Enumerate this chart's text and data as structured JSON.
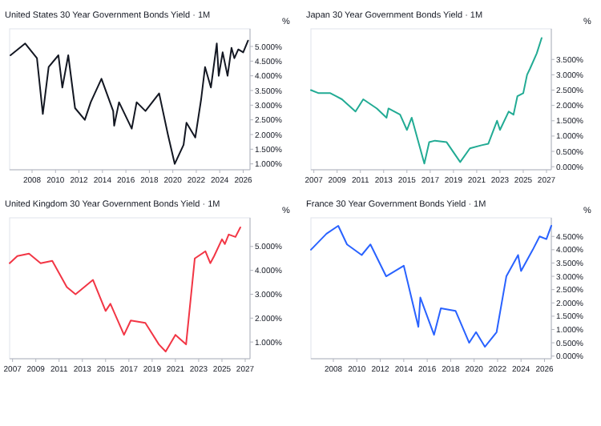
{
  "chart_data": [
    {
      "type": "line",
      "title": "United States 30 Year Government Bonds Yield · 1M",
      "ylabel": "%",
      "color": "#131722",
      "x": [
        "2006-03",
        "2007-06",
        "2008-06",
        "2008-12",
        "2009-06",
        "2010-04",
        "2010-08",
        "2011-02",
        "2011-09",
        "2012-07",
        "2013-01",
        "2013-12",
        "2014-12",
        "2015-01",
        "2015-06",
        "2016-07",
        "2016-12",
        "2017-09",
        "2018-11",
        "2019-08",
        "2020-03",
        "2020-12",
        "2021-03",
        "2021-12",
        "2022-06",
        "2022-10",
        "2023-04",
        "2023-10",
        "2023-12",
        "2024-04",
        "2024-09",
        "2025-01",
        "2025-04",
        "2025-08",
        "2026-01",
        "2026-06"
      ],
      "values": [
        4.7,
        5.1,
        4.6,
        2.7,
        4.3,
        4.7,
        3.6,
        4.7,
        2.9,
        2.5,
        3.1,
        3.9,
        2.8,
        2.3,
        3.1,
        2.2,
        3.1,
        2.8,
        3.4,
        2.0,
        1.0,
        1.65,
        2.4,
        1.9,
        3.2,
        4.3,
        3.6,
        5.1,
        4.0,
        4.8,
        4.0,
        4.95,
        4.6,
        4.9,
        4.8,
        5.2
      ],
      "xlim": [
        "2006-02",
        "2026-08"
      ],
      "xticks": [
        "2008",
        "2010",
        "2012",
        "2014",
        "2016",
        "2018",
        "2020",
        "2022",
        "2024",
        "2026"
      ],
      "ylim": [
        0.8,
        5.6
      ],
      "yticks": [
        {
          "value": 1,
          "label": "1.000%"
        },
        {
          "value": 1.5,
          "label": "1.500%"
        },
        {
          "value": 2,
          "label": "2.000%"
        },
        {
          "value": 2.5,
          "label": "2.500%"
        },
        {
          "value": 3,
          "label": "3.000%"
        },
        {
          "value": 3.5,
          "label": "3.500%"
        },
        {
          "value": 4,
          "label": "4.000%"
        },
        {
          "value": 4.5,
          "label": "4.500%"
        },
        {
          "value": 5,
          "label": "5.000%"
        }
      ]
    },
    {
      "type": "line",
      "title": "Japan 30 Year Government Bonds Yield · 1M",
      "ylabel": "%",
      "color": "#22ab94",
      "x": [
        "2006-10",
        "2007-06",
        "2008-06",
        "2008-12",
        "2009-06",
        "2010-08",
        "2011-04",
        "2012-06",
        "2013-04",
        "2013-06",
        "2014-06",
        "2015-01",
        "2015-06",
        "2016-07",
        "2016-12",
        "2017-06",
        "2018-06",
        "2019-08",
        "2020-06",
        "2021-06",
        "2022-01",
        "2022-10",
        "2023-01",
        "2023-10",
        "2024-03",
        "2024-07",
        "2025-01",
        "2025-05",
        "2025-08",
        "2026-03",
        "2026-08"
      ],
      "values": [
        2.5,
        2.4,
        2.4,
        2.3,
        2.2,
        1.8,
        2.2,
        1.9,
        1.6,
        1.9,
        1.7,
        1.2,
        1.6,
        0.1,
        0.8,
        0.85,
        0.8,
        0.15,
        0.6,
        0.7,
        0.75,
        1.5,
        1.2,
        1.8,
        1.7,
        2.3,
        2.4,
        3.0,
        3.2,
        3.7,
        4.2
      ],
      "xlim": [
        "2006-10",
        "2027-06"
      ],
      "xticks": [
        "2007",
        "2009",
        "2011",
        "2013",
        "2015",
        "2017",
        "2019",
        "2021",
        "2023",
        "2025",
        "2027"
      ],
      "ylim": [
        -0.1,
        4.5
      ],
      "yticks": [
        {
          "value": 0,
          "label": "0.000%"
        },
        {
          "value": 0.5,
          "label": "0.500%"
        },
        {
          "value": 1,
          "label": "1.000%"
        },
        {
          "value": 1.5,
          "label": "1.500%"
        },
        {
          "value": 2,
          "label": "2.000%"
        },
        {
          "value": 2.5,
          "label": "2.500%"
        },
        {
          "value": 3,
          "label": "3.000%"
        },
        {
          "value": 3.5,
          "label": "3.500%"
        }
      ]
    },
    {
      "type": "line",
      "title": "United Kingdom 30 Year Government Bonds Yield · 1M",
      "ylabel": "%",
      "color": "#f23645",
      "x": [
        "2006-10",
        "2007-06",
        "2008-06",
        "2009-06",
        "2010-06",
        "2011-09",
        "2012-06",
        "2013-12",
        "2015-01",
        "2015-06",
        "2016-08",
        "2017-03",
        "2018-06",
        "2019-08",
        "2020-03",
        "2021-01",
        "2021-12",
        "2022-09",
        "2023-08",
        "2024-01",
        "2024-05",
        "2025-01",
        "2025-04",
        "2025-08",
        "2026-03",
        "2026-08"
      ],
      "values": [
        4.3,
        4.6,
        4.7,
        4.3,
        4.4,
        3.3,
        3.0,
        3.6,
        2.3,
        2.6,
        1.3,
        1.9,
        1.8,
        0.9,
        0.6,
        1.3,
        0.9,
        4.5,
        4.8,
        4.3,
        4.6,
        5.3,
        5.1,
        5.5,
        5.4,
        5.8
      ],
      "xlim": [
        "2006-10",
        "2027-06"
      ],
      "xticks": [
        "2007",
        "2009",
        "2011",
        "2013",
        "2015",
        "2017",
        "2019",
        "2021",
        "2023",
        "2025",
        "2027"
      ],
      "ylim": [
        0.3,
        6.2
      ],
      "yticks": [
        {
          "value": 1,
          "label": "1.000%"
        },
        {
          "value": 2,
          "label": "2.000%"
        },
        {
          "value": 3,
          "label": "3.000%"
        },
        {
          "value": 4,
          "label": "4.000%"
        },
        {
          "value": 5,
          "label": "5.000%"
        }
      ]
    },
    {
      "type": "line",
      "title": "France 30 Year Government Bonds Yield · 1M",
      "ylabel": "%",
      "color": "#2962ff",
      "x": [
        "2006-02",
        "2007-06",
        "2008-06",
        "2009-03",
        "2010-06",
        "2011-03",
        "2012-07",
        "2014-01",
        "2015-04",
        "2015-06",
        "2016-08",
        "2017-03",
        "2018-06",
        "2019-08",
        "2020-03",
        "2020-12",
        "2021-12",
        "2022-10",
        "2023-10",
        "2024-01",
        "2025-01",
        "2025-08",
        "2026-03",
        "2026-08"
      ],
      "values": [
        4.0,
        4.6,
        4.9,
        4.2,
        3.8,
        4.2,
        3.0,
        3.4,
        1.1,
        2.2,
        0.8,
        1.8,
        1.7,
        0.5,
        0.9,
        0.35,
        0.9,
        3.0,
        3.8,
        3.2,
        4.0,
        4.5,
        4.4,
        4.9
      ],
      "xlim": [
        "2006-02",
        "2026-08"
      ],
      "xticks": [
        "2008",
        "2010",
        "2012",
        "2014",
        "2016",
        "2018",
        "2020",
        "2022",
        "2024",
        "2026"
      ],
      "ylim": [
        -0.1,
        5.2
      ],
      "yticks": [
        {
          "value": 0,
          "label": "0.000%"
        },
        {
          "value": 0.5,
          "label": "0.500%"
        },
        {
          "value": 1,
          "label": "1.000%"
        },
        {
          "value": 1.5,
          "label": "1.500%"
        },
        {
          "value": 2,
          "label": "2.000%"
        },
        {
          "value": 2.5,
          "label": "2.500%"
        },
        {
          "value": 3,
          "label": "3.000%"
        },
        {
          "value": 3.5,
          "label": "3.500%"
        },
        {
          "value": 4,
          "label": "4.000%"
        },
        {
          "value": 4.5,
          "label": "4.500%"
        }
      ]
    }
  ]
}
